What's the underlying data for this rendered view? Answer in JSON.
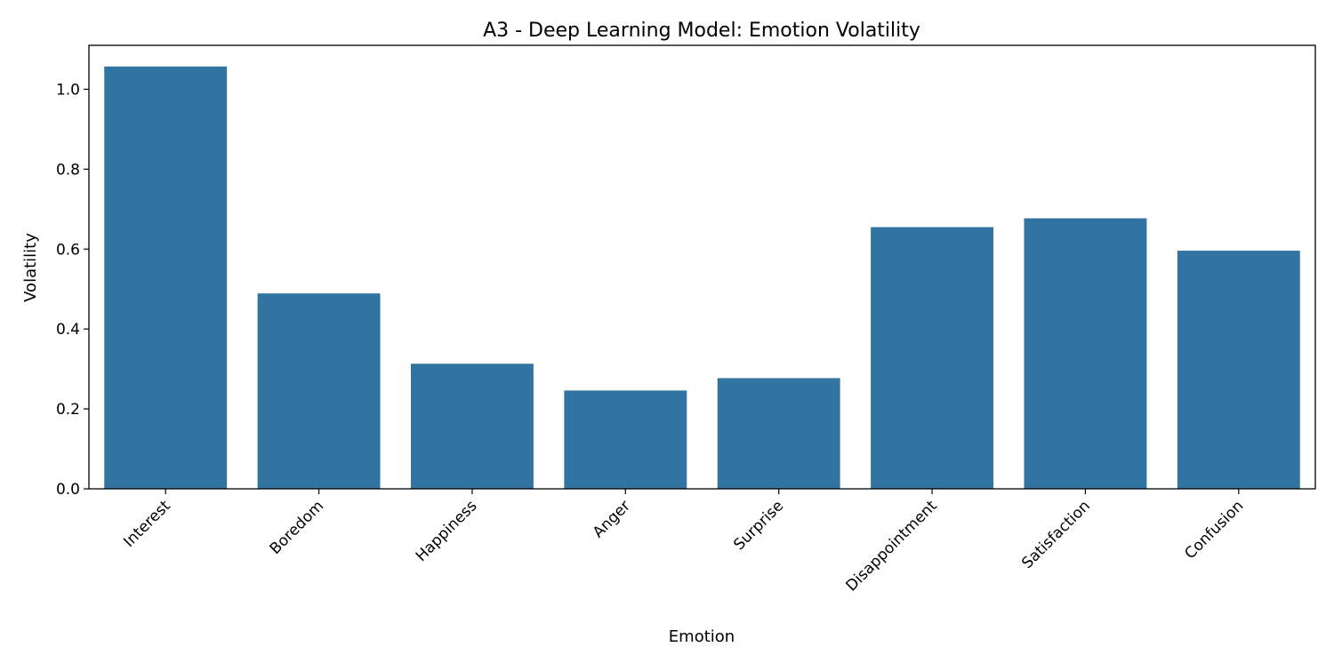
{
  "chart_data": {
    "type": "bar",
    "title": "A3 - Deep Learning Model: Emotion Volatility",
    "xlabel": "Emotion",
    "ylabel": "Volatility",
    "categories": [
      "Interest",
      "Boredom",
      "Happiness",
      "Anger",
      "Surprise",
      "Disappointment",
      "Satisfaction",
      "Confusion"
    ],
    "values": [
      1.057,
      0.489,
      0.313,
      0.246,
      0.277,
      0.655,
      0.677,
      0.596
    ],
    "ylim": [
      0,
      1.11
    ],
    "yticks": [
      0.0,
      0.2,
      0.4,
      0.6,
      0.8,
      1.0
    ],
    "ytick_labels": [
      "0.0",
      "0.2",
      "0.4",
      "0.6",
      "0.8",
      "1.0"
    ],
    "bar_color": "#3274a1",
    "grid": false,
    "xtick_rotation": 45
  }
}
